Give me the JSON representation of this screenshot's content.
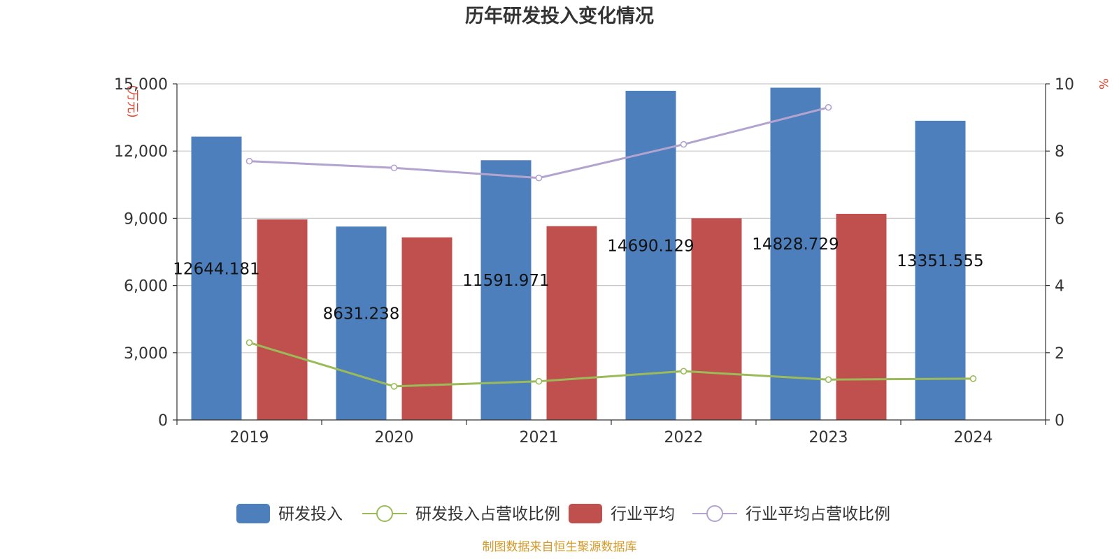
{
  "chart_data": {
    "type": "bar",
    "title": "历年研发投入变化情况",
    "categories": [
      "2019",
      "2020",
      "2021",
      "2022",
      "2023",
      "2024"
    ],
    "left_axis": {
      "unit_label": "(万元)",
      "min": 0,
      "max": 15000,
      "ticks": [
        "0",
        "3,000",
        "6,000",
        "9,000",
        "12,000",
        "15,000"
      ]
    },
    "right_axis": {
      "unit_label": "%",
      "min": 0,
      "max": 10,
      "ticks": [
        "0",
        "2",
        "4",
        "6",
        "8",
        "10"
      ]
    },
    "series": [
      {
        "name": "研发投入",
        "kind": "bar",
        "axis": "left",
        "color": "#4e7fbd",
        "values": [
          12644.181,
          8631.238,
          11591.971,
          14690.129,
          14828.729,
          13351.555
        ],
        "labels": [
          "12644.181",
          "8631.238",
          "11591.971",
          "14690.129",
          "14828.729",
          "13351.555"
        ]
      },
      {
        "name": "研发投入占营收比例",
        "kind": "line",
        "axis": "right",
        "color": "#9bbb59",
        "values": [
          2.3,
          1.0,
          1.15,
          1.45,
          1.2,
          1.23
        ]
      },
      {
        "name": "行业平均",
        "kind": "bar",
        "axis": "left",
        "color": "#c0504d",
        "values": [
          8950,
          8150,
          8650,
          9000,
          9200,
          null
        ]
      },
      {
        "name": "行业平均占营收比例",
        "kind": "line",
        "axis": "right",
        "color": "#b3a3cf",
        "values": [
          7.7,
          7.5,
          7.2,
          8.2,
          9.3,
          null
        ]
      }
    ],
    "source": "制图数据来自恒生聚源数据库"
  }
}
